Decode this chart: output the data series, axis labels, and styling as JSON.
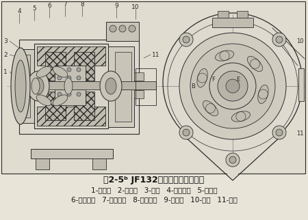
{
  "title": "图2-5ᵇ JF132型交流发电机结构图",
  "line1": "1-后端盖   2-集电环   3-电刷   4-电刷弹簧   5-电刷架",
  "line2": "6-磁场绕组   7-定子绕组   8-定子铁心   9-前端盖   10-风扇   11-带轮",
  "bg_color": "#e8e4d8",
  "draw_bg": "#e0dcd0",
  "line_color": "#2a2a2a",
  "fill_light": "#d8d4c8",
  "fill_dark": "#b0a898",
  "fill_hatch": "#c8c4b8",
  "title_fontsize": 9.0,
  "label_fontsize": 7.5,
  "fig_width": 4.5,
  "fig_height": 3.22,
  "dpi": 100
}
